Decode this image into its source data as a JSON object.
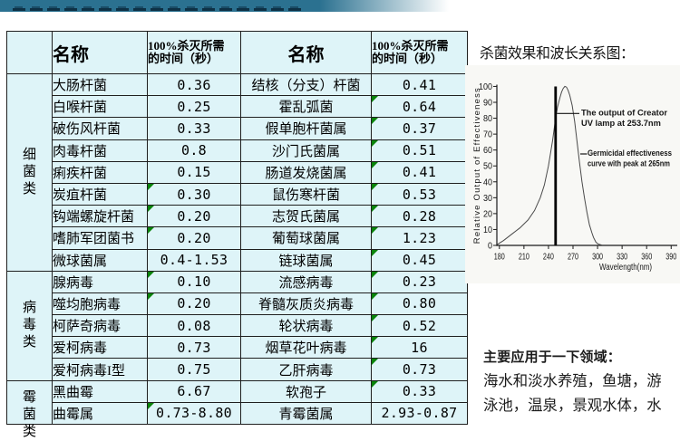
{
  "banner": {
    "background_color": "#2b7190",
    "text_marks_color": "#0d3349"
  },
  "kill_table": {
    "header": {
      "name_label": "名称",
      "time_label": "100%杀灭所需\n的时间（秒）"
    },
    "cell_background": "#def4f8",
    "error_marker_color": "#0b840b",
    "sections": [
      {
        "category": "细菌类",
        "rows": [
          {
            "name1": "大肠杆菌",
            "time1": "0.36",
            "mark1": false,
            "name2": "结核（分支）杆菌",
            "time2": "0.41",
            "mark2": false
          },
          {
            "name1": "白喉杆菌",
            "time1": "0.25",
            "mark1": false,
            "name2": "霍乱弧菌",
            "time2": "0.64",
            "mark2": true
          },
          {
            "name1": "破伤风杆菌",
            "time1": "0.33",
            "mark1": false,
            "name2": "假单胞杆菌属",
            "time2": "0.37",
            "mark2": true
          },
          {
            "name1": "肉毒杆菌",
            "time1": "0.8",
            "mark1": false,
            "name2": "沙门氏菌属",
            "time2": "0.51",
            "mark2": true
          },
          {
            "name1": "痢疾杆菌",
            "time1": "0.15",
            "mark1": false,
            "name2": "肠道发烧菌属",
            "time2": "0.41",
            "mark2": true
          },
          {
            "name1": "炭疽杆菌",
            "time1": "0.30",
            "mark1": true,
            "name2": "鼠伤寒杆菌",
            "time2": "0.53",
            "mark2": true
          },
          {
            "name1": "钩端螺旋杆菌",
            "time1": "0.20",
            "mark1": true,
            "name2": "志贺氏菌属",
            "time2": "0.28",
            "mark2": true
          },
          {
            "name1": "嗜肺军团菌书",
            "time1": "0.20",
            "mark1": true,
            "name2": "葡萄球菌属",
            "time2": "1.23",
            "mark2": true
          },
          {
            "name1": "微球菌属",
            "time1": "0.4-1.53",
            "mark1": false,
            "name2": "链球菌属",
            "time2": "0.45",
            "mark2": true
          }
        ]
      },
      {
        "category": "病毒类",
        "rows": [
          {
            "name1": "腺病毒",
            "time1": "0.10",
            "mark1": true,
            "name2": "流感病毒",
            "time2": "0.23",
            "mark2": true
          },
          {
            "name1": "噬均胞病毒",
            "time1": "0.20",
            "mark1": true,
            "name2": "脊髓灰质炎病毒",
            "time2": "0.80",
            "mark2": true
          },
          {
            "name1": "柯萨奇病毒",
            "time1": "0.08",
            "mark1": false,
            "name2": "轮状病毒",
            "time2": "0.52",
            "mark2": true
          },
          {
            "name1": "爱柯病毒",
            "time1": "0.73",
            "mark1": false,
            "name2": "烟草花叶病毒",
            "time2": "16",
            "mark2": true
          },
          {
            "name1": "爱柯病毒I型",
            "time1": "0.75",
            "mark1": false,
            "name2": "乙肝病毒",
            "time2": "0.73",
            "mark2": true
          }
        ]
      },
      {
        "category": "霉菌类",
        "rows": [
          {
            "name1": "黑曲霉",
            "time1": "6.67",
            "mark1": false,
            "name2": "软孢子",
            "time2": "0.33",
            "mark2": true
          },
          {
            "name1": "曲霉属",
            "time1": "0.73-8.80",
            "mark1": true,
            "name2": "青霉菌属",
            "time2": "2.93-0.87",
            "mark2": false
          }
        ]
      }
    ]
  },
  "chart_data": {
    "type": "line",
    "title": "杀菌效果和波长关系图：",
    "xlabel": "Wavelength(nm)",
    "ylabel": "Relative Output of Effectiveness",
    "xlim": [
      180,
      396
    ],
    "ylim": [
      0,
      100
    ],
    "x_ticks": [
      180,
      210,
      240,
      270,
      300,
      330,
      360,
      390
    ],
    "y_ticks": [
      0,
      10,
      20,
      30,
      40,
      50,
      60,
      70,
      80,
      90,
      100
    ],
    "grid": false,
    "series": [
      {
        "name": "Germicidal effectiveness curve",
        "points": [
          [
            180,
            0.5
          ],
          [
            190,
            3
          ],
          [
            200,
            7
          ],
          [
            210,
            11
          ],
          [
            220,
            16
          ],
          [
            228,
            22
          ],
          [
            235,
            30
          ],
          [
            240,
            38
          ],
          [
            245,
            50
          ],
          [
            250,
            66
          ],
          [
            253.7,
            80
          ],
          [
            256,
            87
          ],
          [
            259,
            93
          ],
          [
            261,
            96.5
          ],
          [
            263,
            98.8
          ],
          [
            265,
            100
          ],
          [
            267,
            99.6
          ],
          [
            269,
            97.5
          ],
          [
            271,
            94.5
          ],
          [
            274,
            88
          ],
          [
            277,
            78
          ],
          [
            280,
            65
          ],
          [
            283,
            52
          ],
          [
            286,
            40
          ],
          [
            289,
            30
          ],
          [
            292,
            21
          ],
          [
            295,
            13
          ],
          [
            298,
            8
          ],
          [
            300,
            5
          ],
          [
            303,
            2
          ],
          [
            306,
            0.8
          ],
          [
            310,
            0.2
          ]
        ]
      }
    ],
    "uv_lamp_line": {
      "x": 253.7,
      "top_value": 100,
      "output_level": 83
    },
    "annotations": [
      {
        "lines": [
          "The output of Creator",
          "UV lamp at 253.7nm"
        ]
      },
      {
        "lines": [
          "Germicidal effectiveness",
          "curve with peak at 265nm"
        ]
      }
    ]
  },
  "applications": {
    "heading": "主要应用于一下领域：",
    "lines": [
      "海水和淡水养殖，鱼塘，游",
      "泳池，温泉，景观水体，水"
    ]
  }
}
